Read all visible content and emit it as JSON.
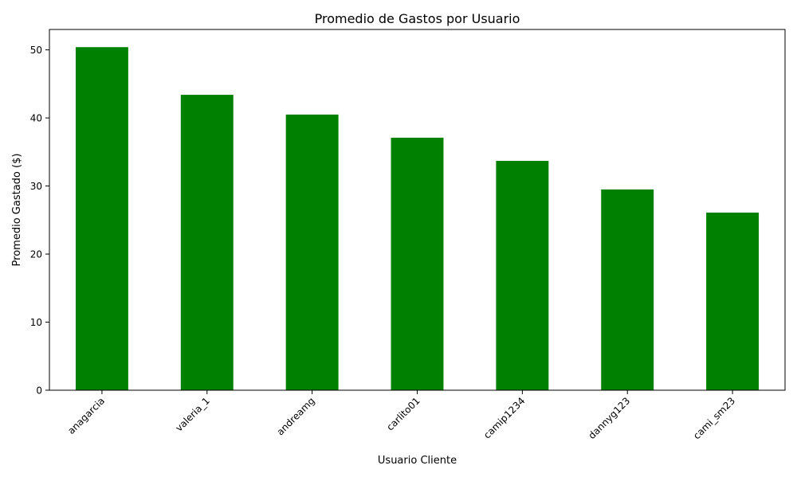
{
  "chart_data": {
    "type": "bar",
    "title": "Promedio de Gastos por Usuario",
    "xlabel": "Usuario Cliente",
    "ylabel": "Promedio Gastado ($)",
    "categories": [
      "anagarcia",
      "valeria_1",
      "andreamg",
      "carlito01",
      "camip1234",
      "dannyg123",
      "cami_sm23"
    ],
    "values": [
      50.4,
      43.4,
      40.5,
      37.1,
      33.7,
      29.5,
      26.1
    ],
    "ylim": [
      0,
      53
    ],
    "yticks": [
      0,
      10,
      20,
      30,
      40,
      50
    ],
    "bar_color": "#008000",
    "grid": false,
    "legend": "none"
  }
}
